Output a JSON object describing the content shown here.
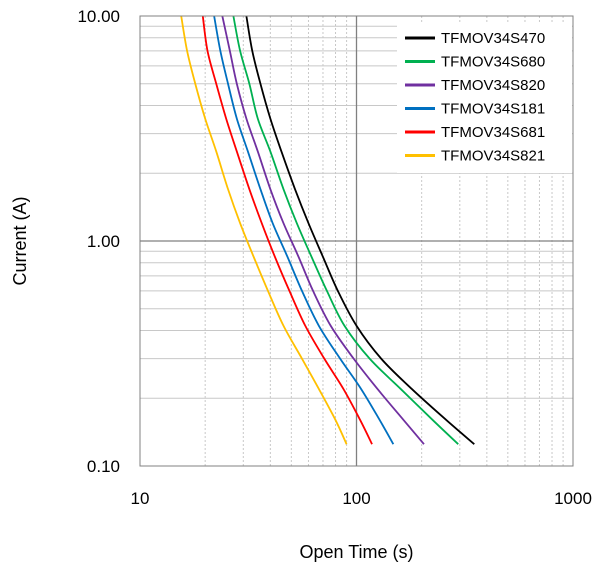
{
  "chart_data": {
    "type": "line",
    "xlabel": "Open Time (s)",
    "ylabel": "Current (A)",
    "x_scale": "log",
    "y_scale": "log",
    "xlim": [
      10,
      1000
    ],
    "ylim": [
      0.1,
      10
    ],
    "x_ticks": [
      "10",
      "100",
      "1000"
    ],
    "y_ticks": [
      "0.10",
      "1.00",
      "10.00"
    ],
    "grid": true,
    "legend_position": "top-right",
    "series": [
      {
        "name": "TFMOV34S470",
        "color": "#000000",
        "points": [
          [
            31,
            10
          ],
          [
            33,
            7
          ],
          [
            36,
            5
          ],
          [
            40,
            3.5
          ],
          [
            45,
            2.5
          ],
          [
            52,
            1.7
          ],
          [
            60,
            1.2
          ],
          [
            70,
            0.85
          ],
          [
            82,
            0.6
          ],
          [
            100,
            0.42
          ],
          [
            130,
            0.3
          ],
          [
            180,
            0.22
          ],
          [
            260,
            0.16
          ],
          [
            350,
            0.125
          ]
        ]
      },
      {
        "name": "TFMOV34S680",
        "color": "#00b050",
        "points": [
          [
            27,
            10
          ],
          [
            29,
            7
          ],
          [
            32,
            5
          ],
          [
            35,
            3.5
          ],
          [
            40,
            2.5
          ],
          [
            46,
            1.7
          ],
          [
            53,
            1.2
          ],
          [
            62,
            0.85
          ],
          [
            73,
            0.6
          ],
          [
            88,
            0.42
          ],
          [
            115,
            0.3
          ],
          [
            160,
            0.22
          ],
          [
            225,
            0.16
          ],
          [
            295,
            0.125
          ]
        ]
      },
      {
        "name": "TFMOV34S820",
        "color": "#7030a0",
        "points": [
          [
            24,
            10
          ],
          [
            26,
            7
          ],
          [
            28,
            5
          ],
          [
            31,
            3.5
          ],
          [
            35,
            2.5
          ],
          [
            40,
            1.7
          ],
          [
            46,
            1.2
          ],
          [
            54,
            0.85
          ],
          [
            63,
            0.6
          ],
          [
            76,
            0.42
          ],
          [
            97,
            0.3
          ],
          [
            125,
            0.22
          ],
          [
            165,
            0.16
          ],
          [
            205,
            0.125
          ]
        ]
      },
      {
        "name": "TFMOV34S181",
        "color": "#0070c0",
        "points": [
          [
            22,
            10
          ],
          [
            23.5,
            7
          ],
          [
            25.5,
            5
          ],
          [
            28,
            3.5
          ],
          [
            31.5,
            2.5
          ],
          [
            36,
            1.7
          ],
          [
            41,
            1.2
          ],
          [
            48,
            0.85
          ],
          [
            56,
            0.6
          ],
          [
            67,
            0.42
          ],
          [
            84,
            0.3
          ],
          [
            105,
            0.22
          ],
          [
            128,
            0.16
          ],
          [
            148,
            0.125
          ]
        ]
      },
      {
        "name": "TFMOV34S681",
        "color": "#ff0000",
        "points": [
          [
            19.5,
            10
          ],
          [
            20.5,
            7
          ],
          [
            22.5,
            5
          ],
          [
            25,
            3.5
          ],
          [
            28,
            2.5
          ],
          [
            32,
            1.7
          ],
          [
            36.5,
            1.2
          ],
          [
            42,
            0.85
          ],
          [
            49,
            0.6
          ],
          [
            58,
            0.42
          ],
          [
            71,
            0.3
          ],
          [
            87,
            0.22
          ],
          [
            104,
            0.16
          ],
          [
            118,
            0.125
          ]
        ]
      },
      {
        "name": "TFMOV34S821",
        "color": "#ffc000",
        "points": [
          [
            15.5,
            10
          ],
          [
            16.5,
            7
          ],
          [
            18,
            5
          ],
          [
            20,
            3.5
          ],
          [
            22.5,
            2.5
          ],
          [
            25.5,
            1.7
          ],
          [
            29,
            1.2
          ],
          [
            33.5,
            0.85
          ],
          [
            39,
            0.6
          ],
          [
            46,
            0.42
          ],
          [
            56,
            0.3
          ],
          [
            67,
            0.22
          ],
          [
            80,
            0.16
          ],
          [
            90,
            0.125
          ]
        ]
      }
    ]
  }
}
